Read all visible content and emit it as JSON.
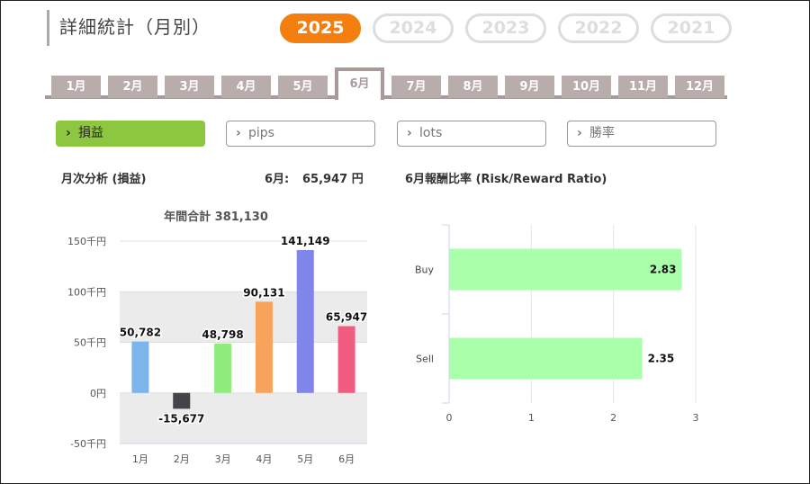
{
  "page": {
    "title": "詳細統計（月別）"
  },
  "years": [
    {
      "label": "2025",
      "active": true
    },
    {
      "label": "2024",
      "active": false
    },
    {
      "label": "2023",
      "active": false
    },
    {
      "label": "2022",
      "active": false
    },
    {
      "label": "2021",
      "active": false
    }
  ],
  "months": [
    {
      "label": "1月",
      "active": false
    },
    {
      "label": "2月",
      "active": false
    },
    {
      "label": "3月",
      "active": false
    },
    {
      "label": "4月",
      "active": false
    },
    {
      "label": "5月",
      "active": false
    },
    {
      "label": "6月",
      "active": true
    },
    {
      "label": "7月",
      "active": false
    },
    {
      "label": "8月",
      "active": false
    },
    {
      "label": "9月",
      "active": false
    },
    {
      "label": "10月",
      "active": false
    },
    {
      "label": "11月",
      "active": false
    },
    {
      "label": "12月",
      "active": false
    }
  ],
  "subtabs": [
    {
      "label": "損益",
      "active": true
    },
    {
      "label": "pips",
      "active": false
    },
    {
      "label": "lots",
      "active": false
    },
    {
      "label": "勝率",
      "active": false
    }
  ],
  "monthly": {
    "heading": "月次分析 (損益)",
    "current_label": "6月:",
    "current_value": "65,947 円"
  },
  "ratio": {
    "heading": "6月報酬比率 (Risk/Reward Ratio)"
  },
  "chart_data": [
    {
      "type": "bar",
      "title": "年間合計 381,130",
      "categories": [
        "1月",
        "2月",
        "3月",
        "4月",
        "5月",
        "6月"
      ],
      "values": [
        50782,
        -15677,
        48798,
        90131,
        141149,
        65947
      ],
      "value_labels": [
        "50,782",
        "-15,677",
        "48,798",
        "90,131",
        "141,149",
        "65,947"
      ],
      "colors": [
        "#7cb5ec",
        "#434348",
        "#90ed7d",
        "#f7a35c",
        "#8085e9",
        "#f15c80"
      ],
      "ylim": [
        -50000,
        150000
      ],
      "yticks": [
        150000,
        100000,
        50000,
        0,
        -50000
      ],
      "ytick_labels": [
        "150千円",
        "100千円",
        "50千円",
        "0円",
        "-50千円"
      ],
      "alternate_band_color": "#ebebeb",
      "xlabel": "",
      "ylabel": ""
    },
    {
      "type": "bar",
      "orientation": "horizontal",
      "categories": [
        "Buy",
        "Sell"
      ],
      "values": [
        2.83,
        2.35
      ],
      "value_labels": [
        "2.83",
        "2.35"
      ],
      "color": "#aaffaa",
      "xlim": [
        0,
        3
      ],
      "xticks": [
        0,
        1,
        2,
        3
      ],
      "xtick_labels": [
        "0",
        "1",
        "2",
        "3"
      ],
      "xlabel": "",
      "ylabel": ""
    }
  ]
}
